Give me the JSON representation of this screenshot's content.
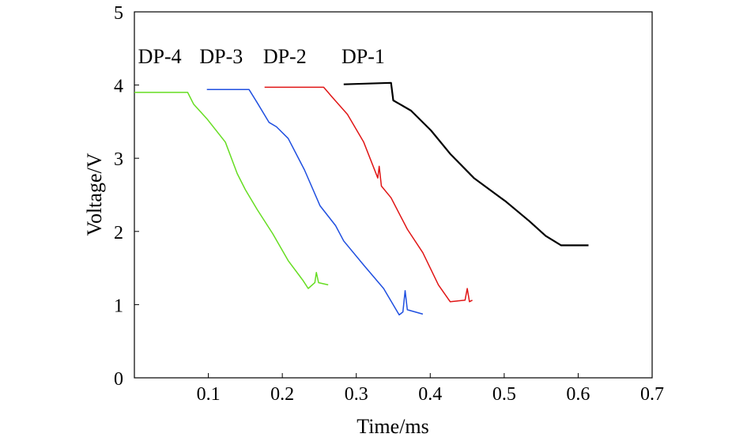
{
  "chart_data": {
    "type": "line",
    "title": "",
    "xlabel": "Time/ms",
    "ylabel": "Voltage/V",
    "xlim": [
      0,
      0.7
    ],
    "ylim": [
      0,
      5
    ],
    "xticks": [
      0.1,
      0.2,
      0.3,
      0.4,
      0.5,
      0.6,
      0.7
    ],
    "xtick_labels": [
      "0.1",
      "0.2",
      "0.3",
      "0.4",
      "0.5",
      "0.6",
      "0.7"
    ],
    "yticks": [
      0,
      1,
      2,
      3,
      4,
      5
    ],
    "ytick_labels": [
      "0",
      "1",
      "2",
      "3",
      "4",
      "5"
    ],
    "grid": false,
    "series": [
      {
        "name": "DP-4",
        "color": "#66dd22",
        "x": [
          0,
          0.072,
          0.08,
          0.098,
          0.123,
          0.139,
          0.15,
          0.166,
          0.187,
          0.208,
          0.228,
          0.235,
          0.244,
          0.246,
          0.249,
          0.262
        ],
        "y": [
          3.9,
          3.9,
          3.74,
          3.54,
          3.22,
          2.79,
          2.57,
          2.3,
          1.97,
          1.6,
          1.33,
          1.22,
          1.3,
          1.44,
          1.3,
          1.27
        ]
      },
      {
        "name": "DP-3",
        "color": "#1f4fe0",
        "x": [
          0.098,
          0.155,
          0.166,
          0.182,
          0.192,
          0.208,
          0.23,
          0.251,
          0.272,
          0.283,
          0.31,
          0.337,
          0.358,
          0.363,
          0.366,
          0.369,
          0.39
        ],
        "y": [
          3.94,
          3.94,
          3.76,
          3.49,
          3.43,
          3.27,
          2.84,
          2.35,
          2.08,
          1.87,
          1.54,
          1.22,
          0.86,
          0.9,
          1.19,
          0.93,
          0.87
        ]
      },
      {
        "name": "DP-2",
        "color": "#e01515",
        "x": [
          0.176,
          0.256,
          0.267,
          0.288,
          0.31,
          0.329,
          0.331,
          0.334,
          0.347,
          0.369,
          0.39,
          0.411,
          0.427,
          0.447,
          0.45,
          0.453,
          0.457
        ],
        "y": [
          3.97,
          3.97,
          3.84,
          3.6,
          3.22,
          2.73,
          2.89,
          2.62,
          2.46,
          2.03,
          1.71,
          1.27,
          1.04,
          1.06,
          1.22,
          1.04,
          1.06
        ]
      },
      {
        "name": "DP-1",
        "color": "#000000",
        "x": [
          0.283,
          0.347,
          0.35,
          0.374,
          0.401,
          0.427,
          0.459,
          0.502,
          0.534,
          0.556,
          0.577,
          0.614
        ],
        "y": [
          4.01,
          4.03,
          3.79,
          3.65,
          3.38,
          3.06,
          2.73,
          2.41,
          2.14,
          1.94,
          1.81,
          1.81
        ]
      }
    ],
    "annotations": [
      {
        "text": "DP-4",
        "x": 0.005,
        "y": 4.3
      },
      {
        "text": "DP-3",
        "x": 0.088,
        "y": 4.3
      },
      {
        "text": "DP-2",
        "x": 0.174,
        "y": 4.3
      },
      {
        "text": "DP-1",
        "x": 0.28,
        "y": 4.3
      }
    ]
  }
}
